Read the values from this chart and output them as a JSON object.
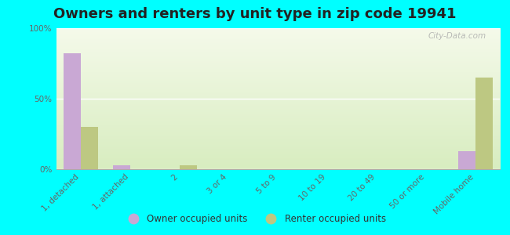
{
  "title": "Owners and renters by unit type in zip code 19941",
  "categories": [
    "1, detached",
    "1, attached",
    "2",
    "3 or 4",
    "5 to 9",
    "10 to 19",
    "20 to 49",
    "50 or more",
    "Mobile home"
  ],
  "owner_values": [
    82,
    3,
    0,
    0,
    0,
    0,
    0,
    0,
    13
  ],
  "renter_values": [
    30,
    0,
    3,
    0,
    0,
    0,
    0,
    0,
    65
  ],
  "owner_color": "#c9a8d4",
  "renter_color": "#bdc882",
  "background_color": "#00ffff",
  "title_fontsize": 13,
  "tick_fontsize": 7.5,
  "ylim": [
    0,
    100
  ],
  "yticks": [
    0,
    50,
    100
  ],
  "ytick_labels": [
    "0%",
    "50%",
    "100%"
  ],
  "bar_width": 0.35,
  "watermark": "City-Data.com",
  "legend_label_owner": "Owner occupied units",
  "legend_label_renter": "Renter occupied units"
}
